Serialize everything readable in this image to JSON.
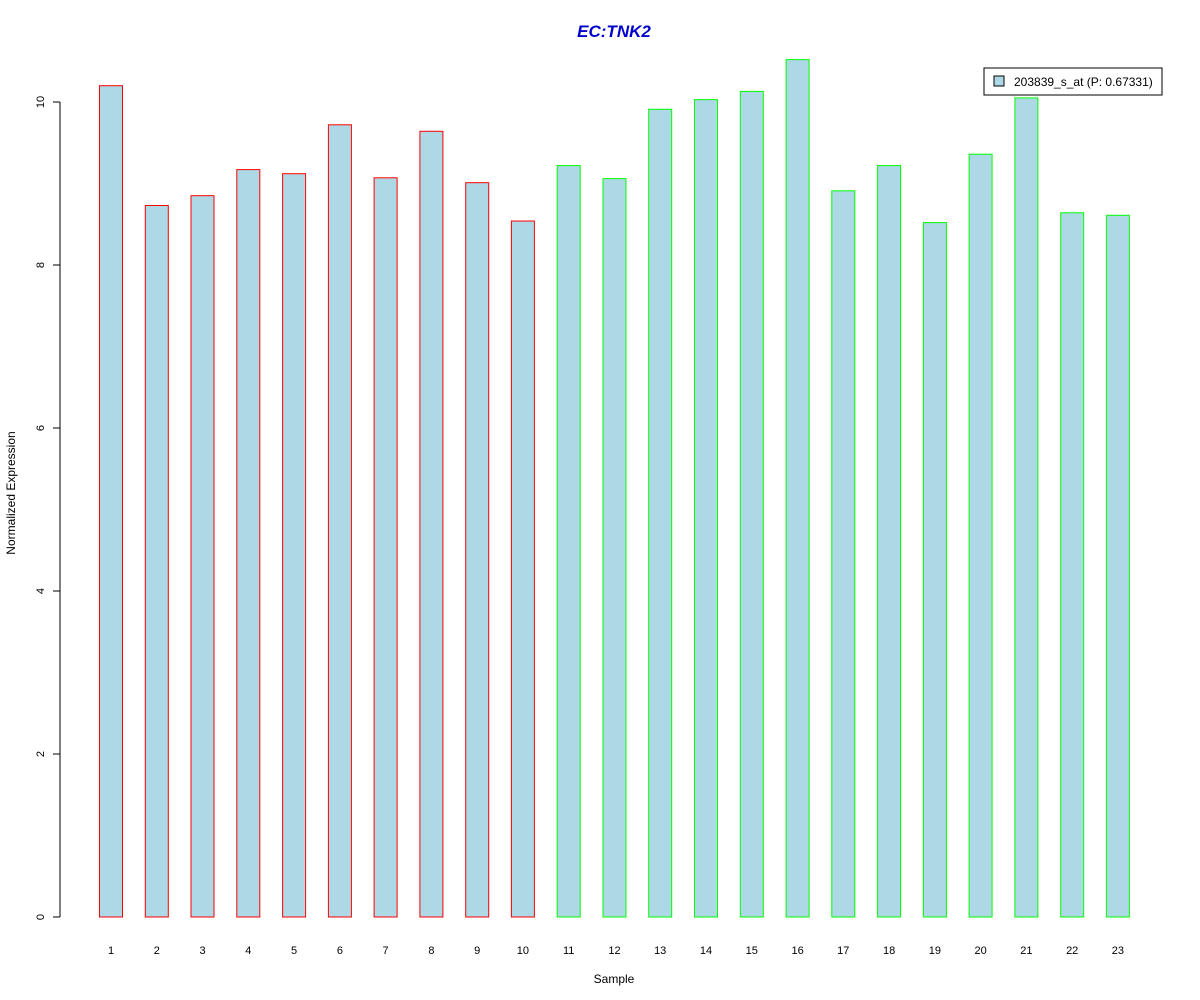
{
  "chart_data": {
    "type": "bar",
    "title": "EC:TNK2",
    "xlabel": "Sample",
    "ylabel": "Normalized Expression",
    "categories": [
      "1",
      "2",
      "3",
      "4",
      "5",
      "6",
      "7",
      "8",
      "9",
      "10",
      "11",
      "12",
      "13",
      "14",
      "15",
      "16",
      "17",
      "18",
      "19",
      "20",
      "21",
      "22",
      "23"
    ],
    "series": [
      {
        "name": "203839_s_at (P: 0.67331)",
        "values": [
          10.2,
          8.73,
          8.85,
          9.17,
          9.12,
          9.72,
          9.07,
          9.64,
          9.01,
          8.54,
          9.22,
          9.06,
          9.91,
          10.03,
          10.13,
          10.52,
          8.91,
          9.22,
          8.52,
          9.36,
          10.05,
          8.64,
          8.61
        ]
      }
    ],
    "groups": [
      {
        "samples": [
          1,
          2,
          3,
          4,
          5,
          6,
          7,
          8,
          9,
          10
        ],
        "border_color": "#ff0000"
      },
      {
        "samples": [
          11,
          12,
          13,
          14,
          15,
          16,
          17,
          18,
          19,
          20,
          21,
          22,
          23
        ],
        "border_color": "#00ff00"
      }
    ],
    "bar_fill_color": "#add8e6",
    "title_color": "#0000cd",
    "y_ticks": [
      0,
      2,
      4,
      6,
      8,
      10
    ],
    "ylim": [
      0,
      10.52
    ],
    "grid": false,
    "legend_position": "top-right"
  }
}
